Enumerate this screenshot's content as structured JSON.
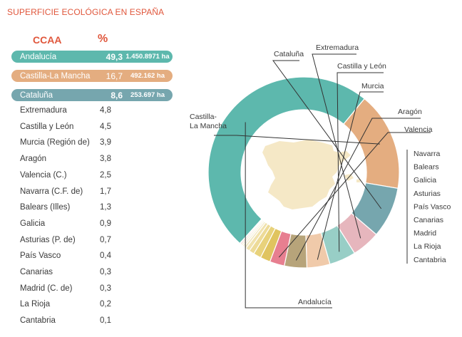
{
  "title": "SUPERFICIE ECOLÓGICA EN ESPAÑA",
  "headers": {
    "region": "CCAA",
    "percent": "%"
  },
  "highlighted": [
    {
      "name": "Andalucía",
      "percent": "49,3",
      "hectares": "1.450.8971 ha",
      "color": "#5db8ad"
    },
    {
      "name": "Castilla-La Mancha",
      "percent": "16,7",
      "hectares": "492.162 ha",
      "color": "#e4ad80"
    },
    {
      "name": "Cataluña",
      "percent": "8,6",
      "hectares": "253.697 ha",
      "color": "#76a6ae"
    }
  ],
  "rows": [
    {
      "name": "Extremadura",
      "percent": "4,8"
    },
    {
      "name": "Castilla y León",
      "percent": "4,5"
    },
    {
      "name": "Murcia (Región de)",
      "percent": "3,9"
    },
    {
      "name": "Aragón",
      "percent": "3,8"
    },
    {
      "name": "Valencia (C.)",
      "percent": "2,5"
    },
    {
      "name": "Navarra (C.F. de)",
      "percent": "1,7"
    },
    {
      "name": "Balears (Illes)",
      "percent": "1,3"
    },
    {
      "name": "Galicia",
      "percent": "0,9"
    },
    {
      "name": "Asturias (P. de)",
      "percent": "0,7"
    },
    {
      "name": "País Vasco",
      "percent": "0,4"
    },
    {
      "name": "Canarias",
      "percent": "0,3"
    },
    {
      "name": "Madrid (C. de)",
      "percent": "0,3"
    },
    {
      "name": "La Rioja",
      "percent": "0,2"
    },
    {
      "name": "Cantabria",
      "percent": "0,1"
    }
  ],
  "chart_data": {
    "type": "pie",
    "variant": "donut",
    "title": "SUPERFICIE ECOLÓGICA EN ESPAÑA",
    "categories": [
      "Andalucía",
      "Castilla-La Mancha",
      "Cataluña",
      "Extremadura",
      "Castilla y León",
      "Murcia",
      "Aragón",
      "Valencia",
      "Navarra",
      "Balears",
      "Galicia",
      "Asturias",
      "País Vasco",
      "Canarias",
      "Madrid",
      "La Rioja",
      "Cantabria"
    ],
    "values": [
      49.3,
      16.7,
      8.6,
      4.8,
      4.5,
      3.9,
      3.8,
      2.5,
      1.7,
      1.3,
      0.9,
      0.7,
      0.4,
      0.3,
      0.3,
      0.2,
      0.1
    ],
    "labels": [
      "Andalucía",
      "Castilla-\nLa Mancha",
      "Cataluña",
      "Extremadura",
      "Castilla y León",
      "Murcia",
      "Aragón",
      "Valencia",
      "Navarra",
      "Balears",
      "Galicia",
      "Asturias",
      "País Vasco",
      "Canarias",
      "Madrid",
      "La Rioja",
      "Cantabria"
    ],
    "colors": [
      "#5db8ad",
      "#e4ad80",
      "#76a6ae",
      "#e6b6bd",
      "#98cec6",
      "#f0caaa",
      "#b7a47a",
      "#e77f90",
      "#e0c45f",
      "#e8d27b",
      "#eddb98",
      "#f0e2ad",
      "#f2e8c2",
      "#f4ecd0",
      "#f6f0db",
      "#e8a8a0",
      "#f8f3e6"
    ]
  }
}
